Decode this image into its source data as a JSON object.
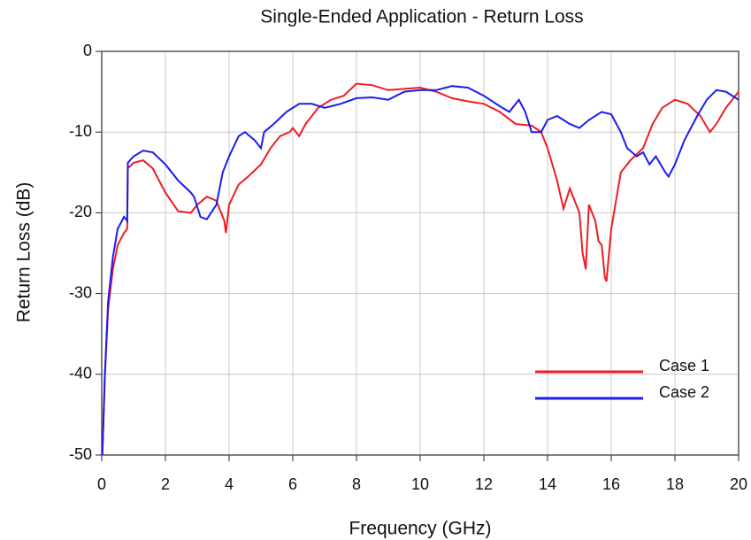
{
  "chart_data": {
    "type": "line",
    "title": "Single-Ended Application - Return Loss",
    "xlabel": "Frequency (GHz)",
    "ylabel": "Return Loss (dB)",
    "xlim": [
      0,
      20
    ],
    "xticks": [
      0,
      2,
      4,
      6,
      8,
      10,
      12,
      14,
      16,
      18,
      20
    ],
    "ylim": [
      -50,
      0
    ],
    "yticks": [
      0,
      -10,
      -20,
      -30,
      -40,
      -50
    ],
    "grid": true,
    "legend": "lower right",
    "series": [
      {
        "name": "Case 1",
        "color": "#ee1c24",
        "x": [
          0.02,
          0.1,
          0.2,
          0.35,
          0.5,
          0.7,
          0.8,
          0.82,
          1.0,
          1.3,
          1.6,
          2.0,
          2.4,
          2.8,
          3.0,
          3.3,
          3.6,
          3.85,
          3.9,
          4.0,
          4.3,
          4.6,
          5.0,
          5.3,
          5.6,
          5.9,
          6.0,
          6.2,
          6.4,
          6.6,
          6.8,
          7.2,
          7.6,
          8.0,
          8.5,
          9.0,
          10.0,
          10.5,
          11.0,
          11.5,
          12.0,
          12.5,
          13.0,
          13.5,
          13.8,
          14.0,
          14.3,
          14.5,
          14.7,
          15.0,
          15.1,
          15.2,
          15.3,
          15.5,
          15.6,
          15.7,
          15.8,
          15.85,
          16.0,
          16.3,
          16.6,
          17.0,
          17.3,
          17.6,
          18.0,
          18.4,
          18.8,
          19.1,
          19.3,
          19.6,
          20.0
        ],
        "values": [
          -50,
          -40,
          -32,
          -27,
          -24,
          -22.5,
          -22,
          -14.5,
          -13.8,
          -13.5,
          -14.5,
          -17.5,
          -19.8,
          -20,
          -19,
          -18,
          -18.5,
          -21,
          -22.5,
          -19,
          -16.5,
          -15.5,
          -14,
          -12,
          -10.5,
          -10,
          -9.5,
          -10.5,
          -9,
          -8,
          -7,
          -6,
          -5.5,
          -4,
          -4.2,
          -4.8,
          -4.5,
          -5,
          -5.8,
          -6.2,
          -6.5,
          -7.5,
          -9,
          -9.2,
          -10,
          -12,
          -16,
          -19.5,
          -17,
          -20,
          -25,
          -27,
          -19,
          -21,
          -23.5,
          -24,
          -28,
          -28.5,
          -22,
          -15,
          -13.5,
          -12,
          -9,
          -7,
          -6,
          -6.5,
          -8,
          -10,
          -9,
          -7,
          -5
        ]
      },
      {
        "name": "Case 2",
        "color": "#1c1cee",
        "x": [
          0.02,
          0.1,
          0.2,
          0.35,
          0.5,
          0.7,
          0.8,
          0.82,
          1.0,
          1.3,
          1.6,
          2.0,
          2.4,
          2.8,
          2.9,
          3.1,
          3.3,
          3.6,
          3.8,
          4.0,
          4.3,
          4.5,
          4.8,
          5.0,
          5.1,
          5.4,
          5.8,
          6.2,
          6.6,
          7.0,
          7.5,
          8.0,
          8.5,
          9.0,
          9.5,
          10.0,
          10.5,
          11.0,
          11.5,
          12.0,
          12.5,
          12.8,
          13.1,
          13.3,
          13.5,
          13.8,
          14.0,
          14.3,
          14.7,
          15.0,
          15.3,
          15.7,
          16.0,
          16.3,
          16.5,
          16.8,
          17.0,
          17.2,
          17.4,
          17.7,
          17.8,
          18.0,
          18.3,
          18.7,
          19.0,
          19.3,
          19.6,
          20.0
        ],
        "values": [
          -50,
          -40,
          -31,
          -25.5,
          -22,
          -20.5,
          -21,
          -13.8,
          -13,
          -12.3,
          -12.5,
          -14,
          -16,
          -17.5,
          -18,
          -20.5,
          -20.8,
          -19,
          -15,
          -13,
          -10.5,
          -10,
          -11,
          -12,
          -10,
          -9,
          -7.5,
          -6.5,
          -6.5,
          -7,
          -6.5,
          -5.8,
          -5.7,
          -6,
          -5,
          -4.8,
          -4.8,
          -4.3,
          -4.5,
          -5.5,
          -6.8,
          -7.5,
          -6,
          -7.5,
          -10,
          -10,
          -8.5,
          -8,
          -9,
          -9.5,
          -8.5,
          -7.5,
          -7.8,
          -10,
          -12,
          -13,
          -12.5,
          -14,
          -13,
          -15,
          -15.5,
          -14,
          -11,
          -8,
          -6,
          -4.8,
          -5,
          -6
        ]
      }
    ]
  }
}
